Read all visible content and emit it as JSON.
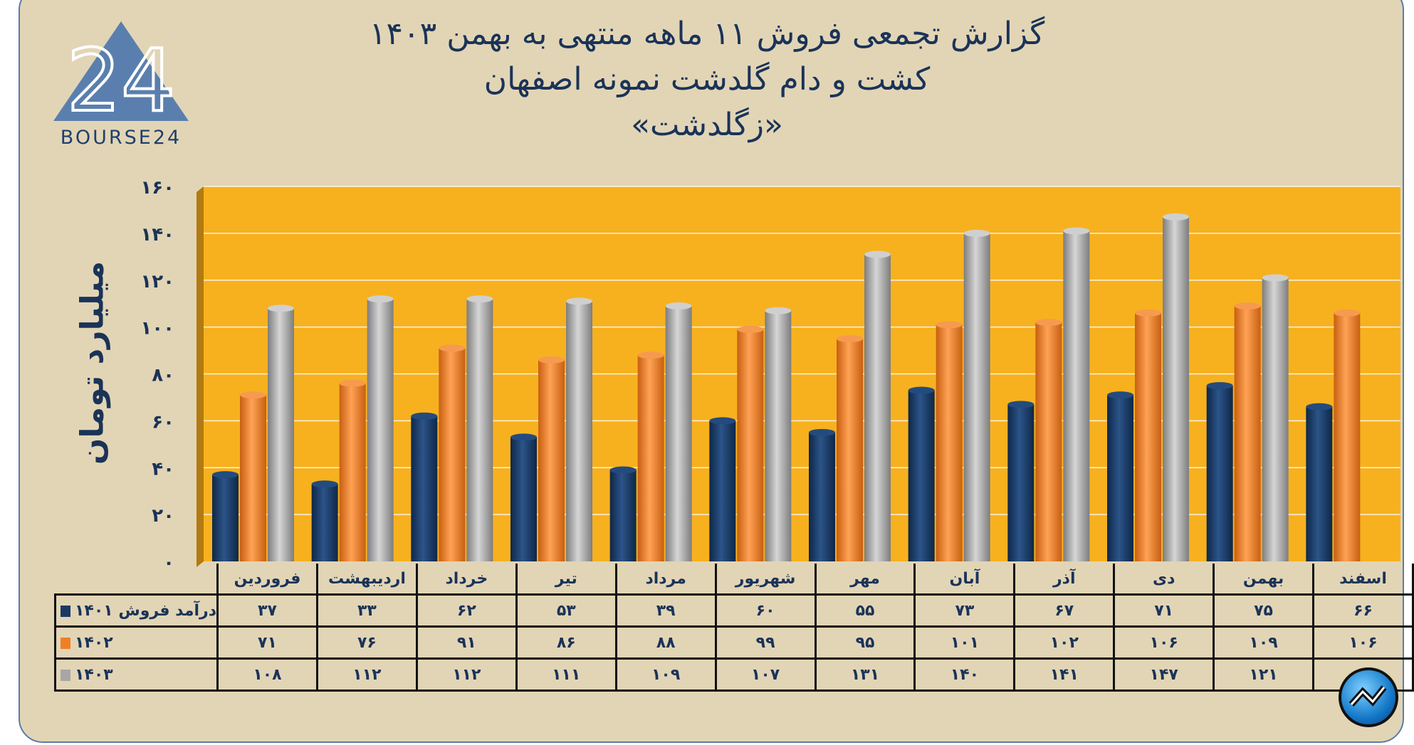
{
  "header": {
    "title_lines": [
      "گزارش تجمعی فروش ۱۱ ماهه منتهی به بهمن ۱۴۰۳",
      "کشت و دام گلدشت نمونه اصفهان",
      "«زگلدشت»"
    ]
  },
  "logo": {
    "text": "BOURSE24",
    "mark": "24"
  },
  "colors": {
    "1401": "#1B3A63",
    "1402": "#F07F24",
    "1403": "#A6A6A6",
    "plot_bg": "#F7B11F",
    "background": "#E2D5B6"
  },
  "icons": {
    "badge": "trend-chart-icon"
  },
  "chart_data": {
    "type": "bar",
    "title": "گزارش تجمعی فروش ۱۱ ماهه منتهی به بهمن ۱۴۰۳",
    "ylabel": "میلیارد تومان",
    "ylim": [
      0,
      160
    ],
    "yticks": [
      "۰",
      "۲۰",
      "۴۰",
      "۶۰",
      "۸۰",
      "۱۰۰",
      "۱۲۰",
      "۱۴۰",
      "۱۶۰"
    ],
    "ytick_values": [
      0,
      20,
      40,
      60,
      80,
      100,
      120,
      140,
      160
    ],
    "grid": true,
    "categories": [
      "فروردین",
      "اردیبهشت",
      "خرداد",
      "تیر",
      "مرداد",
      "شهریور",
      "مهر",
      "آبان",
      "آذر",
      "دی",
      "بهمن",
      "اسفند"
    ],
    "series": [
      {
        "name": "درآمد فروش ۱۴۰۱",
        "values": [
          37,
          33,
          62,
          53,
          39,
          60,
          55,
          73,
          67,
          71,
          75,
          66
        ]
      },
      {
        "name": "۱۴۰۲",
        "values": [
          71,
          76,
          91,
          86,
          88,
          99,
          95,
          101,
          102,
          106,
          109,
          106
        ]
      },
      {
        "name": "۱۴۰۳",
        "values": [
          108,
          112,
          112,
          111,
          109,
          107,
          131,
          140,
          141,
          147,
          121,
          null
        ]
      }
    ]
  },
  "table": {
    "rows": [
      [
        "۳۷",
        "۳۳",
        "۶۲",
        "۵۳",
        "۳۹",
        "۶۰",
        "۵۵",
        "۷۳",
        "۶۷",
        "۷۱",
        "۷۵",
        "۶۶"
      ],
      [
        "۷۱",
        "۷۶",
        "۹۱",
        "۸۶",
        "۸۸",
        "۹۹",
        "۹۵",
        "۱۰۱",
        "۱۰۲",
        "۱۰۶",
        "۱۰۹",
        "۱۰۶"
      ],
      [
        "۱۰۸",
        "۱۱۲",
        "۱۱۲",
        "۱۱۱",
        "۱۰۹",
        "۱۰۷",
        "۱۳۱",
        "۱۴۰",
        "۱۴۱",
        "۱۴۷",
        "۱۲۱",
        ""
      ]
    ]
  }
}
